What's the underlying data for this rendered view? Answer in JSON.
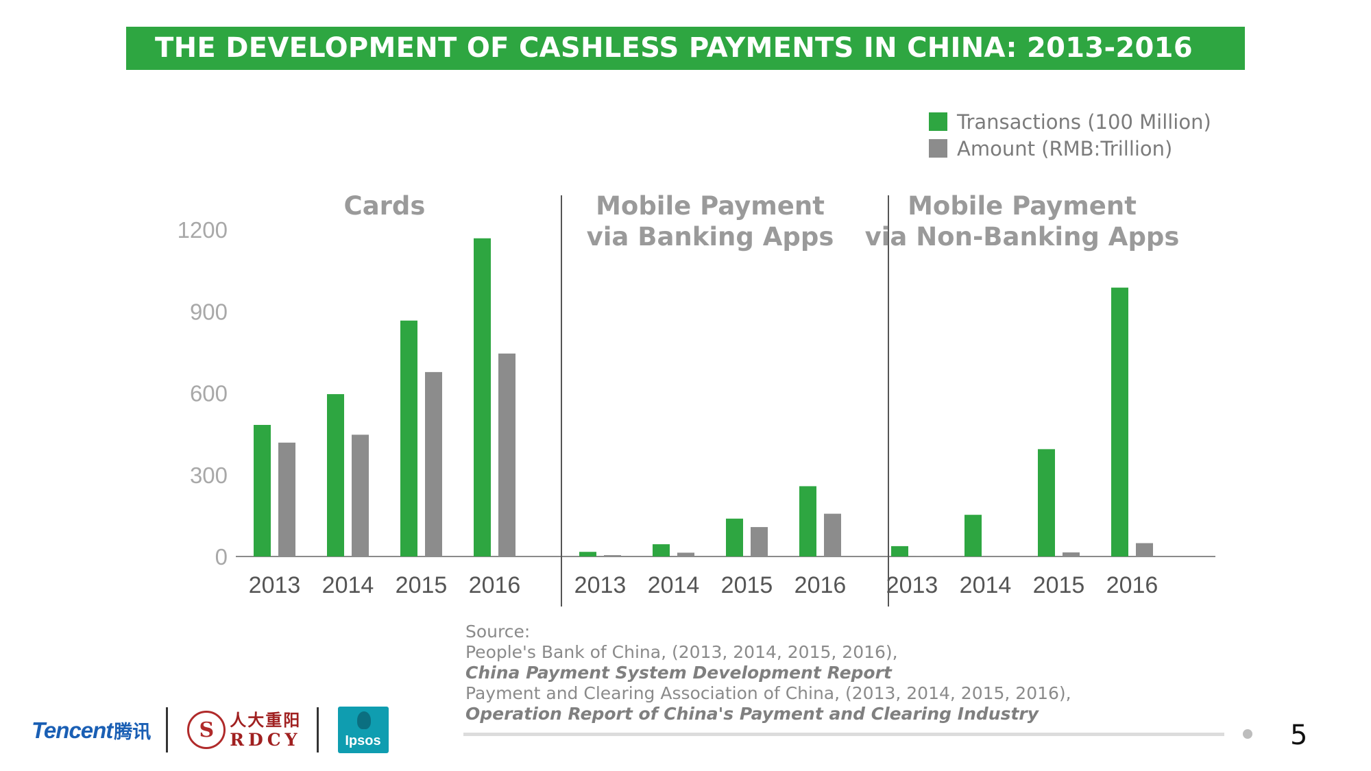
{
  "banner": {
    "title": "THE DEVELOPMENT OF CASHLESS PAYMENTS IN CHINA: 2013-2016"
  },
  "colors": {
    "green": "#2ea641",
    "gray": "#8c8c8c",
    "axis_text": "#a8a8a8",
    "panel_title": "#9a9a9a"
  },
  "legend": [
    {
      "label": "Transactions (100 Million)",
      "color": "#2ea641"
    },
    {
      "label": "Amount (RMB:Trillion)",
      "color": "#8c8c8c"
    }
  ],
  "chart_data": {
    "type": "bar",
    "ylim": [
      0,
      1200
    ],
    "yticks": [
      "0",
      "300",
      "600",
      "900",
      "1200"
    ],
    "categories": [
      "2013",
      "2014",
      "2015",
      "2016"
    ],
    "series_names": [
      "Transactions (100 Million)",
      "Amount (RMB:Trillion)"
    ],
    "panels": [
      {
        "title_lines": [
          "Cards"
        ],
        "series": [
          {
            "name": "Transactions (100 Million)",
            "values": [
              483,
              596,
              866,
              1168
            ]
          },
          {
            "name": "Amount (RMB:Trillion)",
            "values": [
              418,
              447,
              677,
              745
            ]
          }
        ]
      },
      {
        "title_lines": [
          "Mobile Payment",
          "via Banking Apps"
        ],
        "series": [
          {
            "name": "Transactions (100 Million)",
            "values": [
              17,
              45,
              139,
              258
            ]
          },
          {
            "name": "Amount (RMB:Trillion)",
            "values": [
              5,
              14,
              108,
              157
            ]
          }
        ]
      },
      {
        "title_lines": [
          "Mobile Payment",
          "via Non-Banking Apps"
        ],
        "series": [
          {
            "name": "Transactions (100 Million)",
            "values": [
              38,
              153,
              394,
              987
            ]
          },
          {
            "name": "Amount (RMB:Trillion)",
            "values": [
              2,
              1,
              15,
              49
            ]
          }
        ]
      }
    ]
  },
  "source": {
    "label": "Source:",
    "line1": "People's Bank of China, (2013, 2014, 2015, 2016),",
    "line2": "China Payment System Development Report",
    "line3": "Payment and Clearing Association of China, (2013, 2014, 2015, 2016),",
    "line4": "Operation Report of China's Payment and Clearing Industry"
  },
  "logos": {
    "tencent": "Tencent",
    "tencent_cn": "腾讯",
    "rdcy_cn": "人大重阳",
    "rdcy_en": "RDCY",
    "ipsos": "Ipsos"
  },
  "page_number": "5"
}
